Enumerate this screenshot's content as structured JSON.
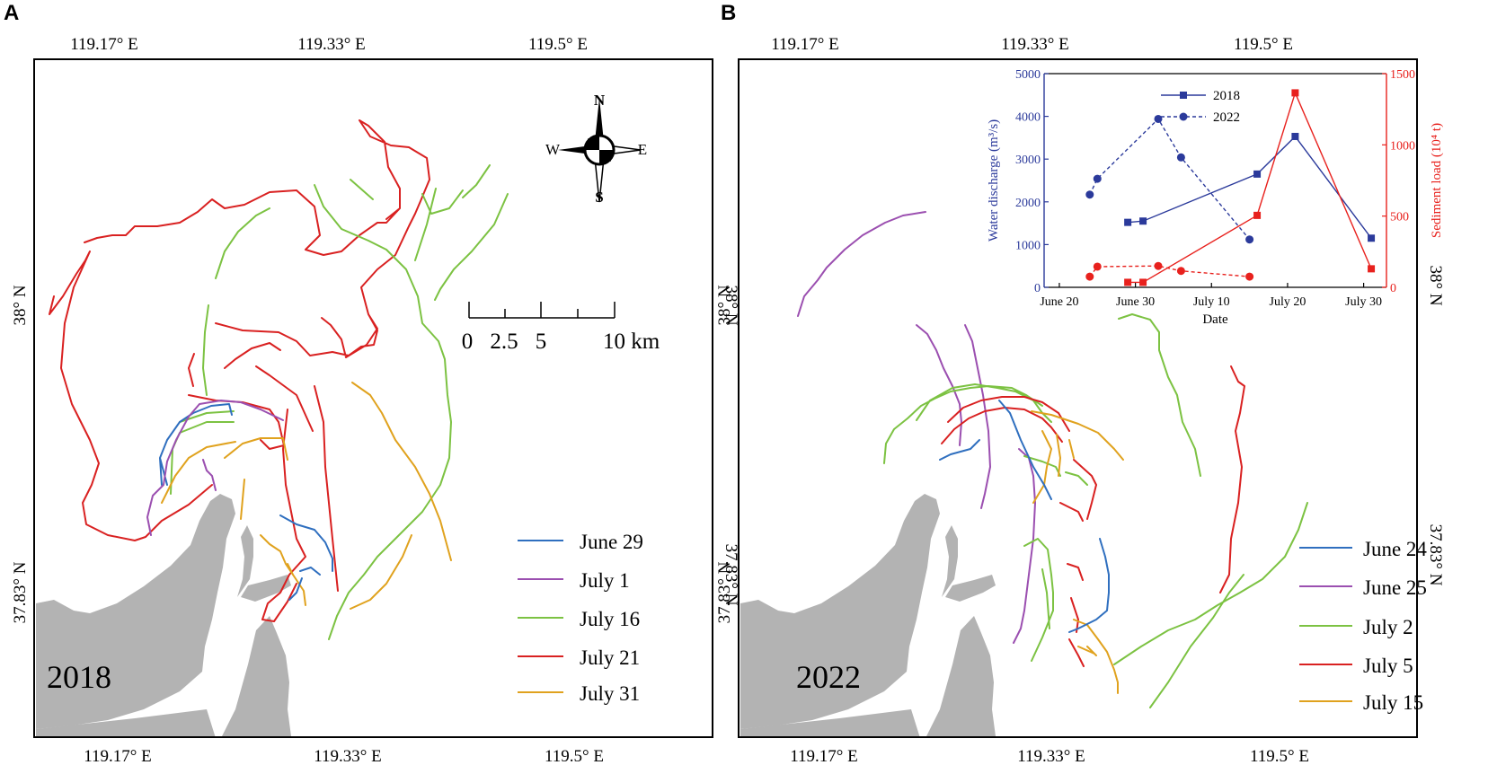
{
  "panels": [
    {
      "letter": "A",
      "year": "2018",
      "top_ticks": [
        "119.17° E",
        "119.33° E",
        "119.5° E"
      ],
      "bottom_ticks": [
        "119.17° E",
        "119.33° E",
        "119.5° E"
      ],
      "left_ticks": [
        "38° N",
        "37.83° N"
      ],
      "right_ticks": [
        "38° N",
        "37.83° N"
      ],
      "legend": [
        {
          "label": "June 29",
          "color": "#2f6fbf"
        },
        {
          "label": "July 1",
          "color": "#9b4fb0"
        },
        {
          "label": "July 16",
          "color": "#7cc242"
        },
        {
          "label": "July 21",
          "color": "#d92121"
        },
        {
          "label": "July 31",
          "color": "#e0a21e"
        }
      ],
      "compass": {
        "n": "N",
        "s": "S",
        "e": "E",
        "w": "W"
      },
      "scalebar": {
        "labels": [
          "0",
          "2.5",
          "5",
          "10 km"
        ]
      }
    },
    {
      "letter": "B",
      "year": "2022",
      "top_ticks": [
        "119.17° E",
        "119.33° E",
        "119.5° E"
      ],
      "bottom_ticks": [
        "119.17° E",
        "119.33° E",
        "119.5° E"
      ],
      "left_ticks": [
        "38° N",
        "37.83° N"
      ],
      "right_ticks": [
        "38° N",
        "37.83° N"
      ],
      "legend": [
        {
          "label": "June 24",
          "color": "#2f6fbf"
        },
        {
          "label": "June 25",
          "color": "#9b4fb0"
        },
        {
          "label": "July 2",
          "color": "#7cc242"
        },
        {
          "label": "July 5",
          "color": "#d92121"
        },
        {
          "label": "July 15",
          "color": "#e0a21e"
        }
      ]
    }
  ],
  "chart_data": {
    "type": "line",
    "xlabel": "Date",
    "x_ticks": [
      "June 20",
      "June 30",
      "July 10",
      "July 20",
      "July 30"
    ],
    "x_tick_days": [
      0,
      10,
      20,
      30,
      40
    ],
    "xlim_days": [
      -2,
      43
    ],
    "left_axis": {
      "label": "Water discharge (m³/s)",
      "ticks": [
        "0",
        "1000",
        "2000",
        "3000",
        "4000",
        "5000"
      ],
      "ylim": [
        0,
        5000
      ],
      "color": "#2b3a9b"
    },
    "right_axis": {
      "label": "Sediment load (10⁴ t)",
      "ticks": [
        "0",
        "500",
        "1000",
        "1500"
      ],
      "ylim": [
        0,
        1500
      ],
      "color": "#e8211d"
    },
    "legend": [
      "2018",
      "2022"
    ],
    "series": [
      {
        "name": "2018",
        "axis": "left",
        "style": "solid",
        "marker": "square",
        "color": "#2b3a9b",
        "x_days": [
          9,
          11,
          26,
          31,
          41
        ],
        "values": [
          1520,
          1550,
          2650,
          3530,
          1150
        ]
      },
      {
        "name": "2022",
        "axis": "left",
        "style": "dashed",
        "marker": "circle",
        "color": "#2b3a9b",
        "x_days": [
          4,
          5,
          13,
          16,
          25
        ],
        "values": [
          2170,
          2540,
          3940,
          3040,
          1120
        ]
      },
      {
        "name": "2018",
        "axis": "right",
        "style": "solid",
        "marker": "square",
        "color": "#e8211d",
        "x_days": [
          9,
          11,
          26,
          31,
          41
        ],
        "values": [
          35,
          35,
          505,
          1365,
          130
        ]
      },
      {
        "name": "2022",
        "axis": "right",
        "style": "dashed",
        "marker": "circle",
        "color": "#e8211d",
        "x_days": [
          4,
          5,
          13,
          16,
          25
        ],
        "values": [
          75,
          145,
          150,
          115,
          75
        ]
      }
    ]
  },
  "colors": {
    "land": "#b3b3b3",
    "frame": "#000000"
  }
}
